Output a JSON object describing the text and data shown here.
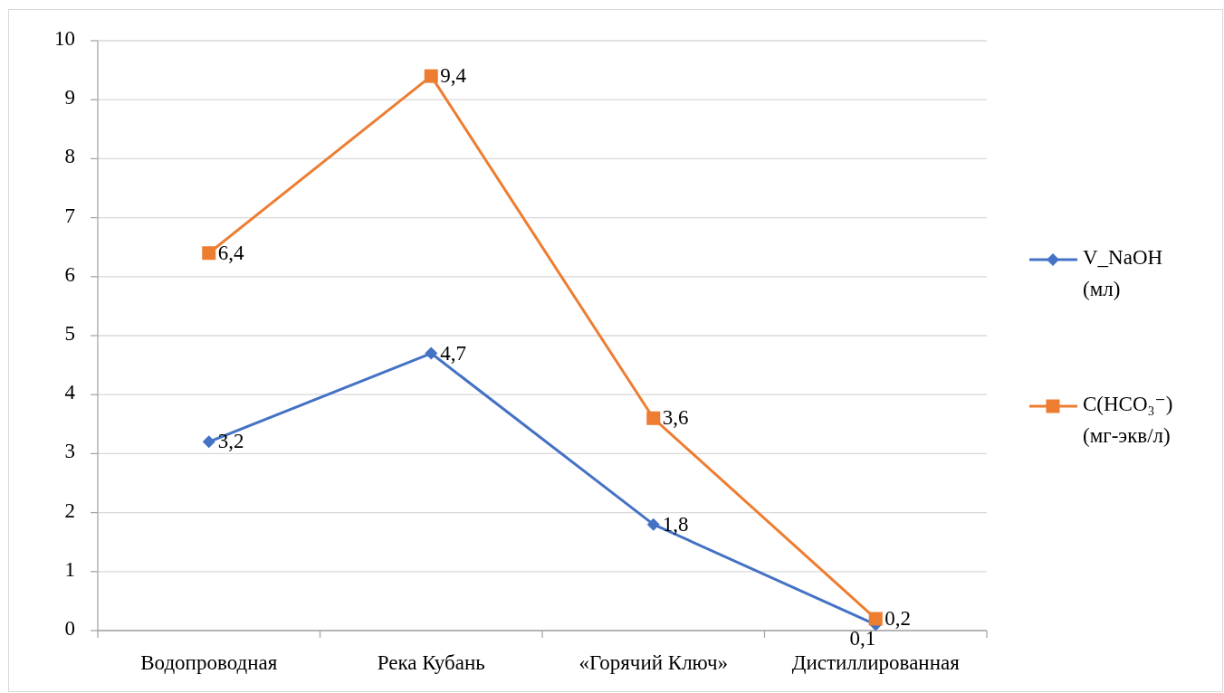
{
  "chart_data": {
    "type": "line",
    "categories": [
      "Водопроводная",
      "Река Кубань",
      "«Горячий Ключ»",
      "Дистиллированная"
    ],
    "series": [
      {
        "name": "V_NaOH (мл)",
        "color": "#4472c4",
        "marker": "diamond",
        "values": [
          3.2,
          4.7,
          1.8,
          0.1
        ],
        "value_labels": [
          "3,2",
          "4,7",
          "1,8",
          "0,1"
        ]
      },
      {
        "name": "C(HCO₃⁻) (мг-экв/л)",
        "color": "#ed7d31",
        "marker": "square",
        "values": [
          6.4,
          9.4,
          3.6,
          0.2
        ],
        "value_labels": [
          "6,4",
          "9,4",
          "3,6",
          "0,2"
        ]
      }
    ],
    "ylim": [
      0,
      10
    ],
    "yticks": [
      0,
      1,
      2,
      3,
      4,
      5,
      6,
      7,
      8,
      9,
      10
    ],
    "grid": "y",
    "legend": "right"
  }
}
